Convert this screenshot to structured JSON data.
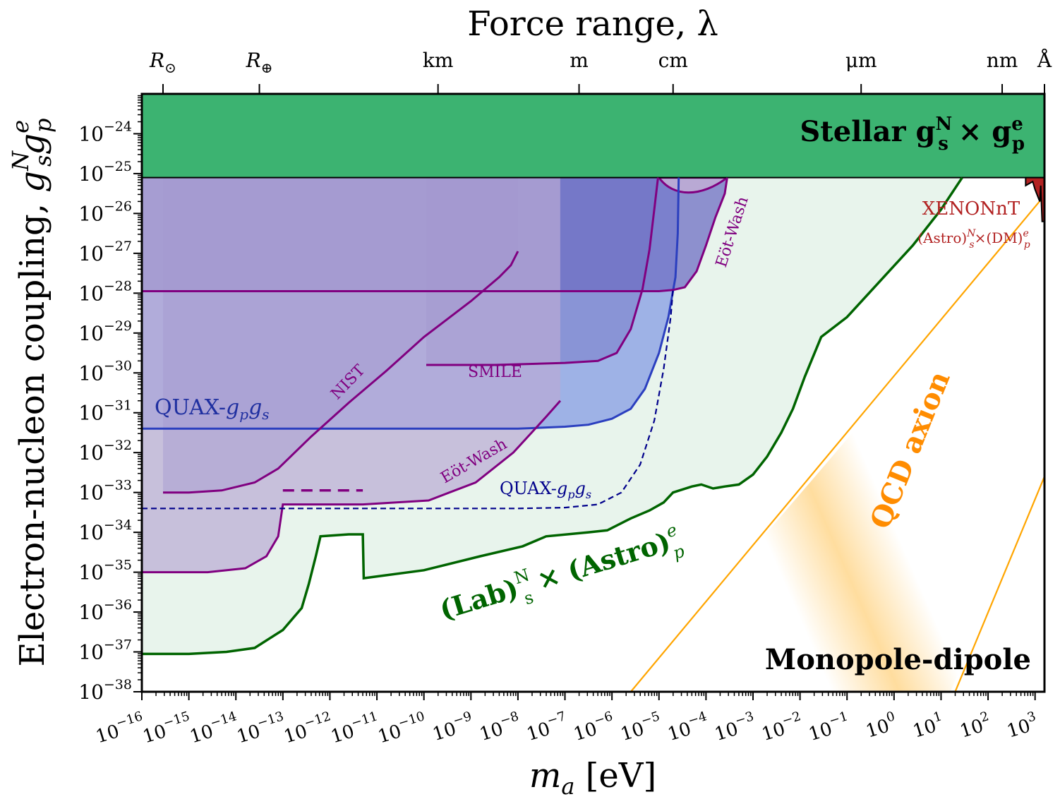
{
  "chart_data": {
    "type": "area",
    "top_title": "Force range, λ",
    "xlabel": {
      "symbol": "m",
      "sub": "a",
      "unit": " [eV]"
    },
    "ylabel": {
      "text": "Electron-nucleon coupling, ",
      "g1": "g",
      "g1_sup": "N",
      "g1_sub": "s",
      "g2": "g",
      "g2_sup": "e",
      "g2_sub": "p"
    },
    "xscale": "log",
    "yscale": "log",
    "xlim_exp": [
      -16,
      3.2
    ],
    "ylim_exp": [
      -38,
      -23
    ],
    "x_tick_exponents": [
      -16,
      -15,
      -14,
      -13,
      -12,
      -11,
      -10,
      -9,
      -8,
      -7,
      -6,
      -5,
      -4,
      -3,
      -2,
      -1,
      0,
      1,
      2,
      3
    ],
    "y_tick_exponents": [
      -38,
      -37,
      -36,
      -35,
      -34,
      -33,
      -32,
      -31,
      -30,
      -29,
      -28,
      -27,
      -26,
      -25,
      -24
    ],
    "top_ticks": [
      {
        "label": "R",
        "sub": "⊙",
        "x_exp": -15.55
      },
      {
        "label": "R",
        "sub": "⊕",
        "x_exp": -13.5
      },
      {
        "label": "km",
        "x_exp": -9.7
      },
      {
        "label": "m",
        "x_exp": -6.7
      },
      {
        "label": "cm",
        "x_exp": -4.7
      },
      {
        "label": "μm",
        "x_exp": -0.7
      },
      {
        "label": "nm",
        "x_exp": 2.3
      },
      {
        "label": "Å",
        "x_exp": 3.3
      }
    ],
    "regions": [
      {
        "name": "Stellar",
        "label": "Stellar g",
        "sup": "N",
        "sub": "s",
        "label2": " × g",
        "sup2": "e",
        "sub2": "p",
        "color": "#3cb371",
        "x": [
          -16,
          3.2
        ],
        "y_lower": -25.1
      },
      {
        "name": "Lab x Astro",
        "label": "(Lab)",
        "sup": "N",
        "sub": "s",
        "label2": " × (Astro)",
        "sup2": "e",
        "sub2": "p",
        "color": "#006400",
        "points": [
          [
            -16,
            -37.05
          ],
          [
            -15,
            -37.05
          ],
          [
            -14.2,
            -37.0
          ],
          [
            -13.6,
            -36.9
          ],
          [
            -13,
            -36.45
          ],
          [
            -12.6,
            -35.9
          ],
          [
            -12.45,
            -35.3
          ],
          [
            -12.3,
            -34.6
          ],
          [
            -12.2,
            -34.1
          ],
          [
            -11.6,
            -34.05
          ],
          [
            -11.3,
            -34.05
          ],
          [
            -11.28,
            -35.15
          ],
          [
            -10,
            -34.95
          ],
          [
            -8.8,
            -34.6
          ],
          [
            -7.9,
            -34.35
          ],
          [
            -7.4,
            -34.1
          ],
          [
            -6.5,
            -34.0
          ],
          [
            -6.1,
            -33.95
          ],
          [
            -5.6,
            -33.65
          ],
          [
            -5.2,
            -33.45
          ],
          [
            -4.9,
            -33.25
          ],
          [
            -4.7,
            -33.0
          ],
          [
            -4.3,
            -32.85
          ],
          [
            -4.1,
            -32.8
          ],
          [
            -3.85,
            -32.9
          ],
          [
            -3.6,
            -32.85
          ],
          [
            -3.3,
            -32.8
          ],
          [
            -3.0,
            -32.55
          ],
          [
            -2.7,
            -32.1
          ],
          [
            -2.4,
            -31.5
          ],
          [
            -2.15,
            -30.9
          ],
          [
            -1.9,
            -30.1
          ],
          [
            -1.55,
            -29.1
          ],
          [
            -1.0,
            -28.6
          ],
          [
            -0.3,
            -27.7
          ],
          [
            0.4,
            -26.8
          ],
          [
            1.0,
            -25.9
          ],
          [
            1.45,
            -25.1
          ]
        ]
      },
      {
        "name": "QUAX-gpgs",
        "label": "QUAX-",
        "gsym": "g",
        "gsub1": "p",
        "gsub2": "s",
        "color": "#2b3fbf",
        "points": [
          [
            -16,
            -31.4
          ],
          [
            -13,
            -31.4
          ],
          [
            -10,
            -31.4
          ],
          [
            -8,
            -31.4
          ],
          [
            -7,
            -31.35
          ],
          [
            -6.5,
            -31.3
          ],
          [
            -6.0,
            -31.15
          ],
          [
            -5.6,
            -30.9
          ],
          [
            -5.3,
            -30.4
          ],
          [
            -5.0,
            -29.5
          ],
          [
            -4.8,
            -28.6
          ],
          [
            -4.65,
            -27.6
          ],
          [
            -4.6,
            -26.5
          ],
          [
            -4.58,
            -25.1
          ]
        ]
      },
      {
        "name": "NIST",
        "label": "NIST",
        "color": "#800080",
        "points": [
          [
            -15.55,
            -33.0
          ],
          [
            -15,
            -33.0
          ],
          [
            -14.3,
            -32.95
          ],
          [
            -13.6,
            -32.75
          ],
          [
            -13.1,
            -32.4
          ],
          [
            -12.4,
            -31.6
          ],
          [
            -11.6,
            -30.75
          ],
          [
            -10.8,
            -29.95
          ],
          [
            -10.0,
            -29.1
          ],
          [
            -9.0,
            -28.2
          ],
          [
            -8.4,
            -27.6
          ],
          [
            -8.15,
            -27.3
          ],
          [
            -8.0,
            -26.95
          ]
        ]
      },
      {
        "name": "SMILE",
        "label": "SMILE",
        "color": "#800080",
        "points": [
          [
            -9.95,
            -29.8
          ],
          [
            -8.5,
            -29.8
          ],
          [
            -7.0,
            -29.75
          ],
          [
            -6.3,
            -29.7
          ],
          [
            -5.9,
            -29.5
          ],
          [
            -5.6,
            -28.9
          ],
          [
            -5.35,
            -27.9
          ],
          [
            -5.2,
            -26.9
          ],
          [
            -5.1,
            -25.9
          ],
          [
            -5.02,
            -25.1
          ]
        ]
      },
      {
        "name": "Eot-Wash upper",
        "label": "Eöt-Wash",
        "color": "#800080",
        "points": [
          [
            -16,
            -27.95
          ],
          [
            -14,
            -27.95
          ],
          [
            -10,
            -27.95
          ],
          [
            -7,
            -27.95
          ],
          [
            -5.8,
            -27.95
          ],
          [
            -5.0,
            -27.95
          ],
          [
            -4.7,
            -27.92
          ],
          [
            -4.45,
            -27.85
          ],
          [
            -4.2,
            -27.45
          ],
          [
            -4.0,
            -26.8
          ],
          [
            -3.8,
            -26.1
          ],
          [
            -3.6,
            -25.5
          ],
          [
            -3.55,
            -25.1
          ]
        ]
      },
      {
        "name": "Eot-Wash lower",
        "label": "Eöt-Wash",
        "color": "#800080",
        "points": [
          [
            -16,
            -35.0
          ],
          [
            -14.6,
            -35.0
          ],
          [
            -13.8,
            -34.9
          ],
          [
            -13.35,
            -34.6
          ],
          [
            -13.1,
            -34.1
          ],
          [
            -13.0,
            -33.3
          ],
          [
            -11.3,
            -33.3
          ],
          [
            -9.9,
            -33.2
          ],
          [
            -8.9,
            -32.75
          ],
          [
            -8.1,
            -32.0
          ],
          [
            -7.4,
            -31.1
          ],
          [
            -7.1,
            -30.7
          ]
        ]
      }
    ],
    "dashed_curves": [
      {
        "name": "QUAX-gpgs projected",
        "label": "QUAX-",
        "gsym": "g",
        "gsub1": "p",
        "gsub2": "s",
        "color": "#00008b",
        "points": [
          [
            -16,
            -33.4
          ],
          [
            -12,
            -33.4
          ],
          [
            -8,
            -33.4
          ],
          [
            -7,
            -33.38
          ],
          [
            -6.3,
            -33.3
          ],
          [
            -5.8,
            -33.0
          ],
          [
            -5.4,
            -32.3
          ],
          [
            -5.1,
            -31.2
          ],
          [
            -4.9,
            -29.9
          ],
          [
            -4.75,
            -28.6
          ],
          [
            -4.7,
            -27.9
          ]
        ]
      },
      {
        "name": "Eot-Wash dashed",
        "color": "#800080",
        "points": [
          [
            -13.0,
            -32.95
          ],
          [
            -11.3,
            -32.95
          ]
        ]
      }
    ],
    "xenon": {
      "label": "XENONnT",
      "sublabel": "(Astro)",
      "sup": "N",
      "sub": "s",
      "mid": "×(DM)",
      "sup2": "e",
      "sub2": "p",
      "color": "#b22222"
    },
    "qcd": {
      "label": "QCD axion",
      "color": "#ffa500"
    },
    "corner_label": "Monopole-dipole"
  }
}
